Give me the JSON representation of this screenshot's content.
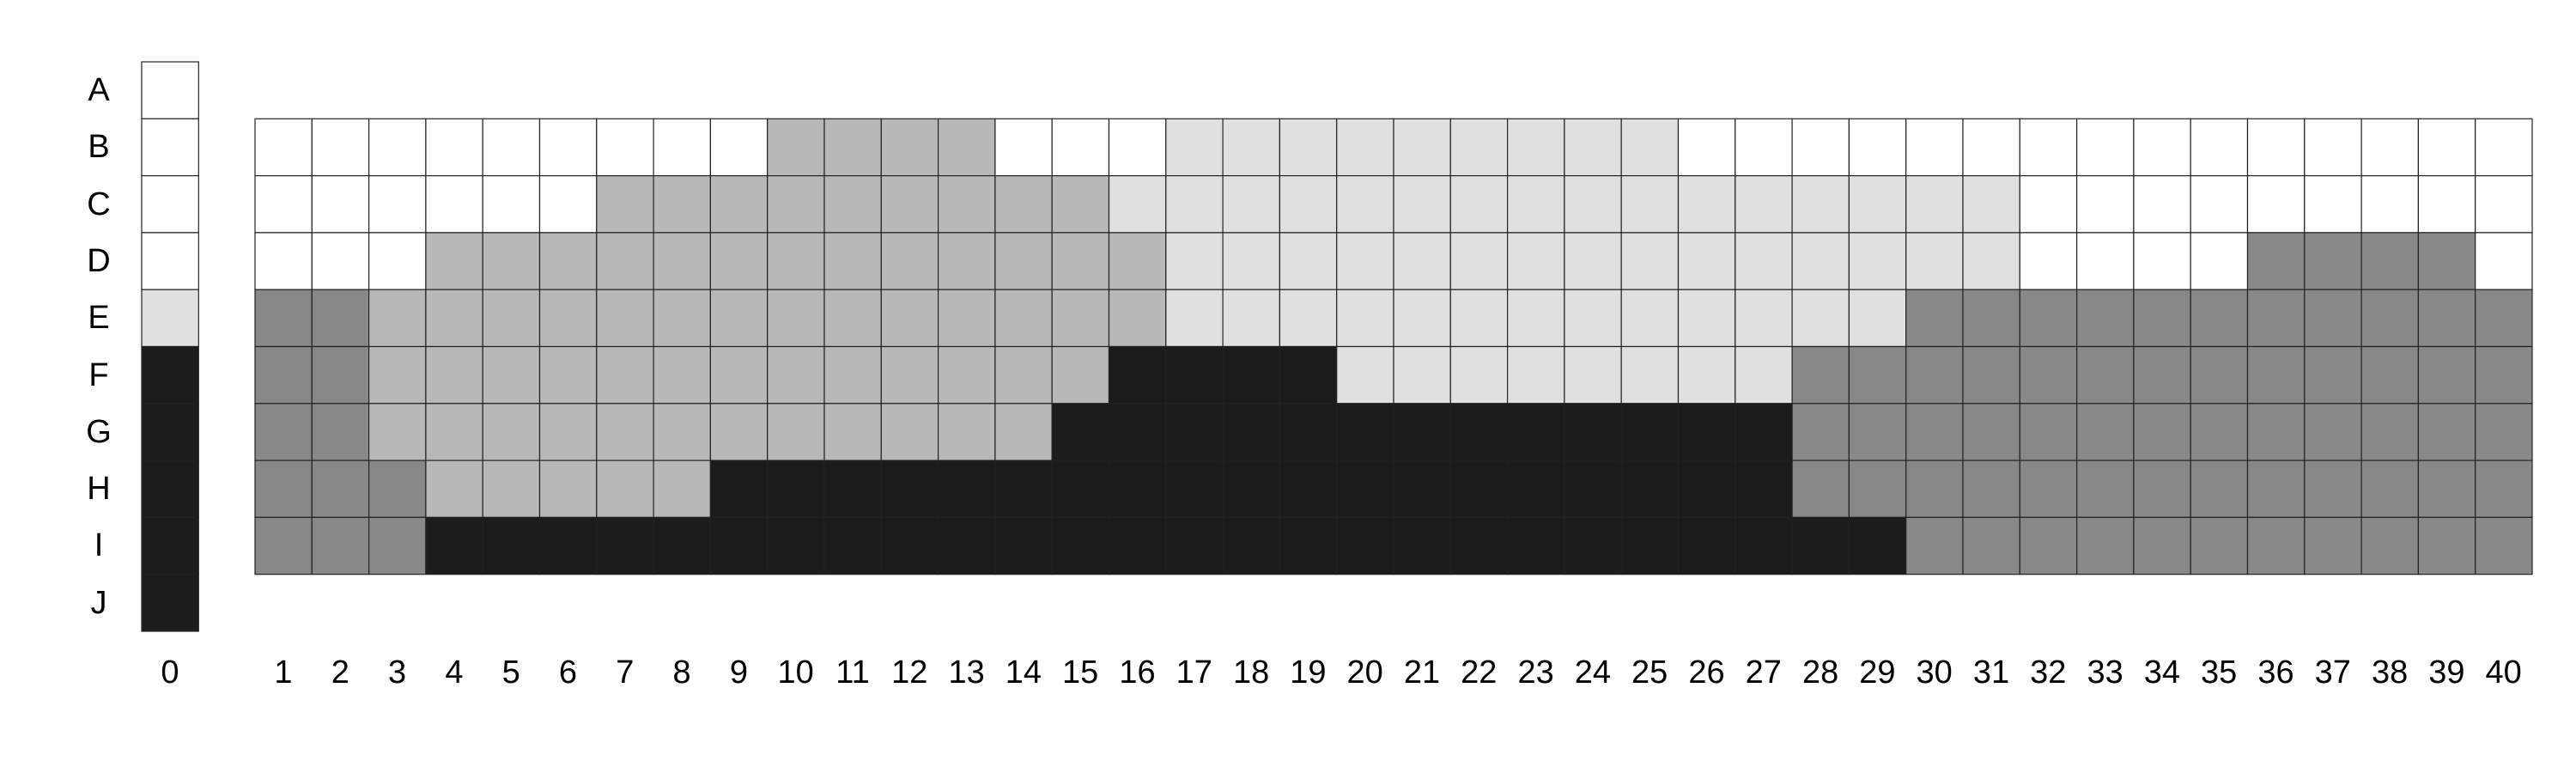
{
  "row_labels": [
    "A",
    "B",
    "C",
    "D",
    "E",
    "F",
    "G",
    "H",
    "I",
    "J"
  ],
  "col0_label": "0",
  "col_labels": [
    "1",
    "2",
    "3",
    "4",
    "5",
    "6",
    "7",
    "8",
    "9",
    "10",
    "11",
    "12",
    "13",
    "14",
    "15",
    "16",
    "17",
    "18",
    "19",
    "20",
    "21",
    "22",
    "23",
    "24",
    "25",
    "26",
    "27",
    "28",
    "29",
    "30",
    "31",
    "32",
    "33",
    "34",
    "35",
    "36",
    "37",
    "38",
    "39",
    "40"
  ],
  "palette": {
    "0": "#ffffff",
    "1": "#e0e0e0",
    "2": "#b8b8b8",
    "3": "#888888",
    "4": "#1c1c1c"
  },
  "reference_column": {
    "A": 0,
    "B": 0,
    "C": 0,
    "D": 0,
    "E": 1,
    "F": 4,
    "G": 4,
    "H": 4,
    "I": 4,
    "J": 4
  },
  "grid_rows": {
    "B": "0000000002222000111111111000000000000000",
    "C": "0000002222222221111111111111111000000000",
    "D": "0002222222222222111111111111111000033330",
    "E": "3322222222222222111111111111133333333333",
    "F": "3322222222222224444111111113333333333333",
    "G": "3322222222222244444444444443333333333333",
    "H": "3332222244444444444444444443333333333333",
    "I": "3334444444444444444444444444433333333333"
  }
}
